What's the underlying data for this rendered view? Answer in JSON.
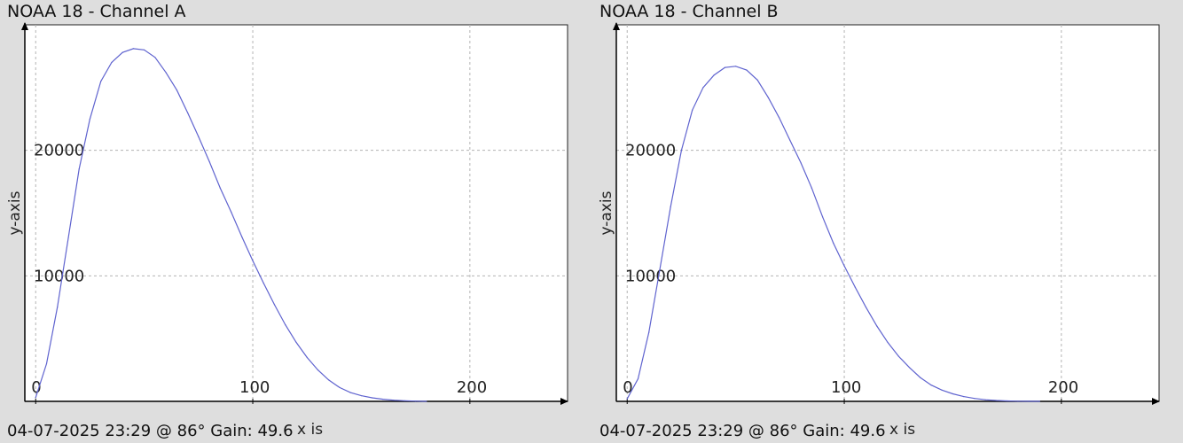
{
  "colors": {
    "background": "#dedede",
    "plot_background": "#ffffff",
    "series": "#5f63cf",
    "grid": "#b3b3b3"
  },
  "chart_data": [
    {
      "type": "line",
      "title": "NOAA 18 - Channel A",
      "footer": "04-07-2025 23:29 @ 86° Gain: 49.6",
      "xlabel": "x is",
      "ylabel": "y-axis",
      "xlim": [
        -5,
        245
      ],
      "ylim": [
        0,
        30000
      ],
      "x_ticks": [
        0,
        100,
        200
      ],
      "y_ticks": [
        10000,
        20000
      ],
      "grid": true,
      "series": [
        {
          "x": [
            0,
            5,
            10,
            15,
            20,
            25,
            30,
            35,
            40,
            45,
            50,
            55,
            60,
            65,
            70,
            75,
            80,
            85,
            90,
            95,
            100,
            105,
            110,
            115,
            120,
            125,
            130,
            135,
            140,
            145,
            150,
            155,
            160,
            165,
            170,
            175,
            180
          ],
          "values": [
            300,
            3000,
            7500,
            13000,
            18500,
            22500,
            25500,
            27000,
            27800,
            28100,
            28000,
            27400,
            26200,
            24800,
            23000,
            21100,
            19100,
            17000,
            15100,
            13100,
            11200,
            9400,
            7700,
            6100,
            4700,
            3500,
            2500,
            1700,
            1100,
            700,
            450,
            280,
            170,
            90,
            50,
            20,
            0
          ]
        }
      ]
    },
    {
      "type": "line",
      "title": "NOAA 18 - Channel B",
      "footer": "04-07-2025 23:29 @ 86° Gain: 49.6",
      "xlabel": "x is",
      "ylabel": "y-axis",
      "xlim": [
        -5,
        245
      ],
      "ylim": [
        0,
        30000
      ],
      "x_ticks": [
        0,
        100,
        200
      ],
      "y_ticks": [
        10000,
        20000
      ],
      "grid": true,
      "series": [
        {
          "x": [
            0,
            5,
            10,
            15,
            20,
            25,
            30,
            35,
            40,
            45,
            50,
            55,
            60,
            65,
            70,
            75,
            80,
            85,
            90,
            95,
            100,
            105,
            110,
            115,
            120,
            125,
            130,
            135,
            140,
            145,
            150,
            155,
            160,
            165,
            170,
            175,
            180,
            185,
            190
          ],
          "values": [
            200,
            1800,
            5500,
            10500,
            15500,
            20000,
            23200,
            25000,
            26000,
            26600,
            26700,
            26400,
            25600,
            24200,
            22600,
            20800,
            19000,
            17000,
            14700,
            12600,
            10800,
            9100,
            7500,
            6000,
            4700,
            3600,
            2700,
            1900,
            1300,
            900,
            600,
            380,
            230,
            130,
            70,
            35,
            15,
            5,
            0
          ]
        }
      ]
    }
  ]
}
